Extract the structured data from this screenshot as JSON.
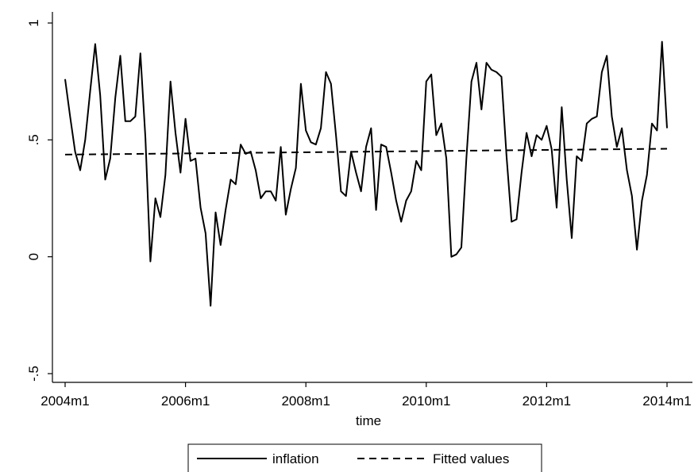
{
  "chart_data": {
    "type": "line",
    "xlabel": "time",
    "ylabel": "",
    "xlim": [
      "2004m1",
      "2014m1"
    ],
    "ylim": [
      -0.5,
      1
    ],
    "x_ticks": [
      "2004m1",
      "2006m1",
      "2008m1",
      "2010m1",
      "2012m1",
      "2014m1"
    ],
    "y_ticks": [
      {
        "value": -0.5,
        "label": "-.5"
      },
      {
        "value": 0,
        "label": "0"
      },
      {
        "value": 0.5,
        "label": ".5"
      },
      {
        "value": 1,
        "label": "1"
      }
    ],
    "grid": false,
    "legend_position": "bottom",
    "series": [
      {
        "name": "inflation",
        "style": "solid",
        "color": "#000000",
        "x_start": "2004m1",
        "frequency": "monthly",
        "values": [
          0.76,
          0.6,
          0.45,
          0.37,
          0.5,
          0.71,
          0.91,
          0.69,
          0.33,
          0.42,
          0.68,
          0.86,
          0.58,
          0.58,
          0.6,
          0.87,
          0.51,
          -0.02,
          0.25,
          0.17,
          0.35,
          0.75,
          0.53,
          0.36,
          0.59,
          0.41,
          0.42,
          0.21,
          0.1,
          -0.21,
          0.19,
          0.05,
          0.2,
          0.33,
          0.31,
          0.48,
          0.44,
          0.45,
          0.37,
          0.25,
          0.28,
          0.28,
          0.24,
          0.47,
          0.18,
          0.29,
          0.38,
          0.74,
          0.54,
          0.49,
          0.48,
          0.55,
          0.79,
          0.74,
          0.52,
          0.28,
          0.26,
          0.45,
          0.36,
          0.28,
          0.47,
          0.55,
          0.2,
          0.48,
          0.47,
          0.36,
          0.24,
          0.15,
          0.24,
          0.28,
          0.41,
          0.37,
          0.75,
          0.78,
          0.52,
          0.57,
          0.42,
          0.0,
          0.01,
          0.04,
          0.42,
          0.75,
          0.83,
          0.63,
          0.83,
          0.8,
          0.79,
          0.77,
          0.43,
          0.15,
          0.16,
          0.36,
          0.53,
          0.43,
          0.52,
          0.5,
          0.56,
          0.46,
          0.21,
          0.64,
          0.33,
          0.08,
          0.43,
          0.41,
          0.57,
          0.59,
          0.6,
          0.79,
          0.86,
          0.6,
          0.47,
          0.55,
          0.37,
          0.26,
          0.03,
          0.24,
          0.35,
          0.57,
          0.54,
          0.92,
          0.55
        ]
      },
      {
        "name": "Fitted values",
        "style": "dashed",
        "color": "#000000",
        "x": [
          "2004m1",
          "2014m1"
        ],
        "values": [
          0.437,
          0.462
        ]
      }
    ]
  }
}
